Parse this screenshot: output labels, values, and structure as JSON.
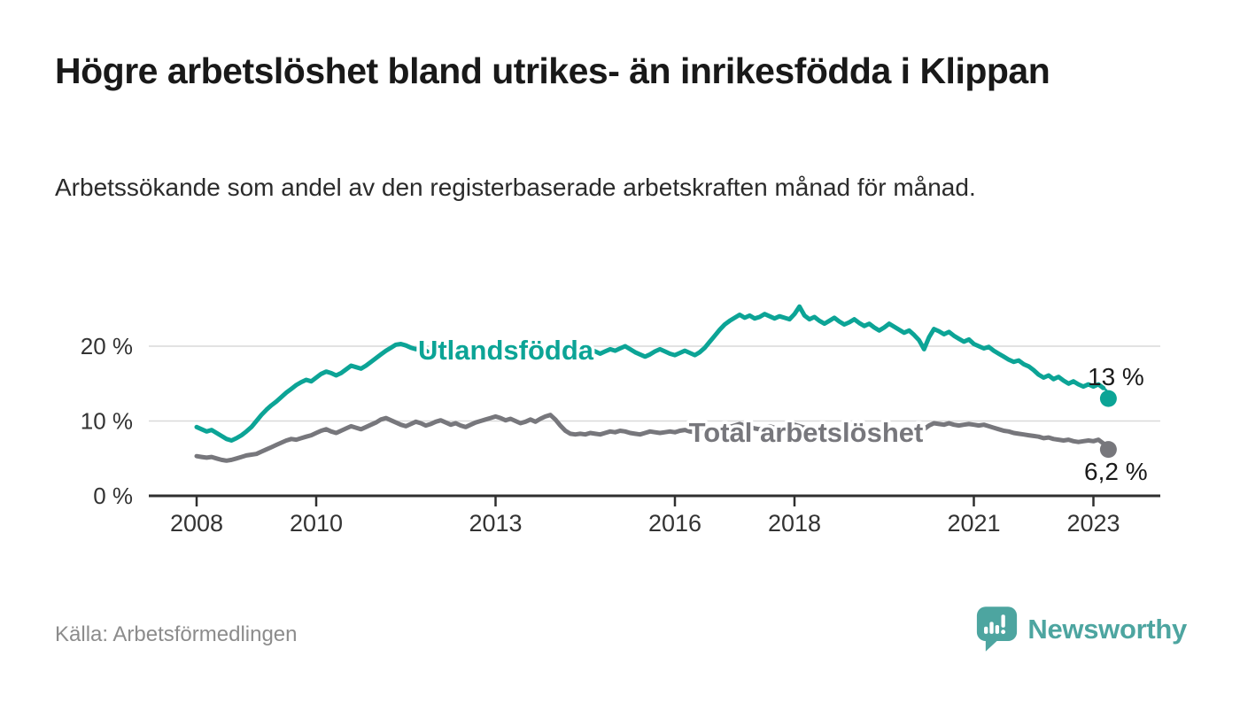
{
  "header": {
    "title": "Högre arbetslöshet bland utrikes- än inrikesfödda i Klippan",
    "subtitle": "Arbetssökande som andel av den registerbaserade arbetskraften månad för månad."
  },
  "footer": {
    "source": "Källa: Arbetsförmedlingen",
    "brand": "Newsworthy"
  },
  "colors": {
    "accent_teal": "#0ca496",
    "series_gray": "#77777c",
    "logo_teal": "#4da5a0",
    "grid": "#d9d9d9",
    "axis": "#2f2f2f",
    "axis_text": "#333333",
    "value_label_text": "#1a1a1a"
  },
  "chart_data": {
    "type": "line",
    "unit": "%",
    "x_start_year": 2008,
    "x_step_years": 0.083333,
    "x_ticks": [
      2008,
      2010,
      2013,
      2016,
      2018,
      2021,
      2023
    ],
    "y_ticks": [
      {
        "value": 0,
        "label": "0 %"
      },
      {
        "value": 10,
        "label": "10 %"
      },
      {
        "value": 20,
        "label": "20 %"
      }
    ],
    "ylim": [
      0,
      27
    ],
    "grid": "horizontal",
    "legend": "inline-labels",
    "series": [
      {
        "name": "Utlandsfödda",
        "color": "#0ca496",
        "latest_label": "13 %",
        "latest_value": 13.0,
        "values": [
          9.2,
          8.9,
          8.6,
          8.8,
          8.4,
          8.0,
          7.6,
          7.4,
          7.7,
          8.1,
          8.6,
          9.2,
          10.0,
          10.8,
          11.5,
          12.1,
          12.6,
          13.2,
          13.8,
          14.3,
          14.8,
          15.2,
          15.5,
          15.3,
          15.8,
          16.3,
          16.6,
          16.4,
          16.1,
          16.4,
          16.9,
          17.4,
          17.2,
          17.0,
          17.4,
          17.9,
          18.4,
          18.9,
          19.4,
          19.8,
          20.2,
          20.3,
          20.1,
          19.8,
          19.6,
          19.8,
          19.4,
          19.0,
          18.7,
          18.5,
          18.8,
          19.2,
          18.9,
          18.6,
          18.4,
          18.7,
          19.0,
          19.3,
          19.6,
          19.4,
          19.2,
          19.5,
          19.8,
          19.6,
          19.3,
          19.6,
          19.9,
          20.1,
          19.7,
          19.4,
          19.7,
          20.0,
          20.3,
          19.9,
          19.5,
          19.7,
          19.3,
          18.9,
          19.2,
          19.6,
          19.3,
          19.0,
          19.3,
          19.6,
          19.4,
          19.7,
          20.0,
          19.6,
          19.2,
          18.9,
          18.6,
          18.9,
          19.3,
          19.6,
          19.3,
          19.0,
          18.8,
          19.1,
          19.4,
          19.1,
          18.8,
          19.2,
          19.8,
          20.6,
          21.4,
          22.2,
          22.9,
          23.4,
          23.8,
          24.2,
          23.8,
          24.1,
          23.7,
          23.9,
          24.3,
          24.0,
          23.7,
          24.0,
          23.8,
          23.6,
          24.3,
          25.3,
          24.1,
          23.6,
          23.9,
          23.4,
          23.0,
          23.4,
          23.8,
          23.3,
          22.9,
          23.2,
          23.6,
          23.1,
          22.7,
          23.0,
          22.5,
          22.1,
          22.5,
          23.0,
          22.6,
          22.2,
          21.8,
          22.1,
          21.5,
          20.8,
          19.6,
          21.2,
          22.3,
          22.0,
          21.6,
          21.9,
          21.4,
          21.0,
          20.6,
          20.9,
          20.3,
          20.0,
          19.7,
          19.9,
          19.4,
          19.0,
          18.6,
          18.2,
          17.9,
          18.1,
          17.6,
          17.3,
          16.8,
          16.2,
          15.8,
          16.1,
          15.6,
          15.9,
          15.4,
          15.0,
          15.3,
          14.9,
          14.6,
          14.9,
          14.6,
          14.9,
          14.4,
          13.0
        ]
      },
      {
        "name": "Total arbetslöshet",
        "color": "#77777c",
        "latest_label": "6,2 %",
        "latest_value": 6.2,
        "values": [
          5.3,
          5.2,
          5.1,
          5.2,
          5.0,
          4.8,
          4.7,
          4.8,
          5.0,
          5.2,
          5.4,
          5.5,
          5.6,
          5.9,
          6.2,
          6.5,
          6.8,
          7.1,
          7.4,
          7.6,
          7.5,
          7.7,
          7.9,
          8.1,
          8.4,
          8.7,
          8.9,
          8.6,
          8.4,
          8.7,
          9.0,
          9.3,
          9.1,
          8.9,
          9.2,
          9.5,
          9.8,
          10.2,
          10.4,
          10.1,
          9.8,
          9.5,
          9.3,
          9.6,
          9.9,
          9.7,
          9.4,
          9.6,
          9.9,
          10.1,
          9.8,
          9.5,
          9.7,
          9.4,
          9.2,
          9.5,
          9.8,
          10.0,
          10.2,
          10.4,
          10.6,
          10.4,
          10.1,
          10.3,
          10.0,
          9.7,
          9.9,
          10.2,
          9.9,
          10.3,
          10.6,
          10.8,
          10.2,
          9.4,
          8.7,
          8.3,
          8.2,
          8.3,
          8.2,
          8.4,
          8.3,
          8.2,
          8.4,
          8.6,
          8.5,
          8.7,
          8.6,
          8.4,
          8.3,
          8.2,
          8.4,
          8.6,
          8.5,
          8.4,
          8.5,
          8.6,
          8.5,
          8.7,
          8.8,
          8.6,
          8.5,
          8.7,
          8.9,
          8.8,
          8.6,
          8.8,
          9.0,
          9.2,
          9.4,
          9.6,
          9.4,
          9.2,
          9.0,
          8.9,
          9.1,
          9.3,
          9.1,
          9.0,
          9.2,
          9.4,
          9.5,
          9.3,
          9.1,
          8.9,
          8.7,
          8.6,
          8.8,
          9.0,
          8.8,
          8.6,
          8.5,
          8.7,
          8.9,
          8.7,
          8.5,
          8.4,
          8.2,
          8.1,
          8.3,
          8.5,
          8.3,
          8.2,
          8.4,
          8.6,
          8.8,
          8.6,
          8.9,
          9.4,
          9.7,
          9.6,
          9.5,
          9.7,
          9.5,
          9.4,
          9.5,
          9.6,
          9.5,
          9.4,
          9.5,
          9.3,
          9.1,
          8.9,
          8.7,
          8.6,
          8.4,
          8.3,
          8.2,
          8.1,
          8.0,
          7.9,
          7.7,
          7.8,
          7.6,
          7.5,
          7.4,
          7.5,
          7.3,
          7.2,
          7.3,
          7.4,
          7.3,
          7.5,
          7.0,
          6.2
        ]
      }
    ]
  }
}
